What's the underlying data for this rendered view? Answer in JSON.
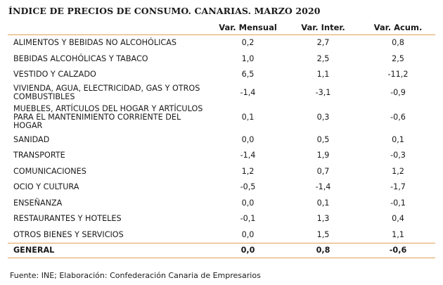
{
  "title": "ÍNDICE DE PRECIOS DE CONSUMO. CANARIAS. MARZO 2020",
  "columns": [
    "Var. Mensual",
    "Var. Inter.",
    "Var. Acum."
  ],
  "rows": [
    {
      "label": "ALIMENTOS Y BEBIDAS NO ALCOHÓLICAS",
      "mensual": "0,2",
      "inter": "2,7",
      "acum": "0,8"
    },
    {
      "label": "BEBIDAS ALCOHÓLICAS Y TABACO",
      "mensual": "1,0",
      "inter": "2,5",
      "acum": "2,5"
    },
    {
      "label": "VESTIDO Y CALZADO",
      "mensual": "6,5",
      "inter": "1,1",
      "acum": "-11,2"
    },
    {
      "label": "VIVIENDA, AGUA, ELECTRICIDAD, GAS Y OTROS COMBUSTIBLES",
      "mensual": "-1,4",
      "inter": "-3,1",
      "acum": "-0,9"
    },
    {
      "label": "MUEBLES, ARTÍCULOS DEL HOGAR Y ARTÍCULOS PARA EL MANTENIMIENTO CORRIENTE DEL HOGAR",
      "mensual": "0,1",
      "inter": "0,3",
      "acum": "-0,6"
    },
    {
      "label": "SANIDAD",
      "mensual": "0,0",
      "inter": "0,5",
      "acum": "0,1"
    },
    {
      "label": "TRANSPORTE",
      "mensual": "-1,4",
      "inter": "1,9",
      "acum": "-0,3"
    },
    {
      "label": "COMUNICACIONES",
      "mensual": "1,2",
      "inter": "0,7",
      "acum": "1,2"
    },
    {
      "label": "OCIO Y CULTURA",
      "mensual": "-0,5",
      "inter": "-1,4",
      "acum": "-1,7"
    },
    {
      "label": "ENSEÑANZA",
      "mensual": "0,0",
      "inter": "0,1",
      "acum": "-0,1"
    },
    {
      "label": "RESTAURANTES Y HOTELES",
      "mensual": "-0,1",
      "inter": "1,3",
      "acum": "0,4"
    },
    {
      "label": "OTROS BIENES Y SERVICIOS",
      "mensual": "0,0",
      "inter": "1,5",
      "acum": "1,1"
    }
  ],
  "total": {
    "label": "GENERAL",
    "mensual": "0,0",
    "inter": "0,8",
    "acum": "-0,6"
  },
  "source": "Fuente: INE; Elaboración: Confederación Canaria de Empresarios",
  "colors": {
    "rule": "#e0a05a",
    "text": "#1a1a1a"
  }
}
